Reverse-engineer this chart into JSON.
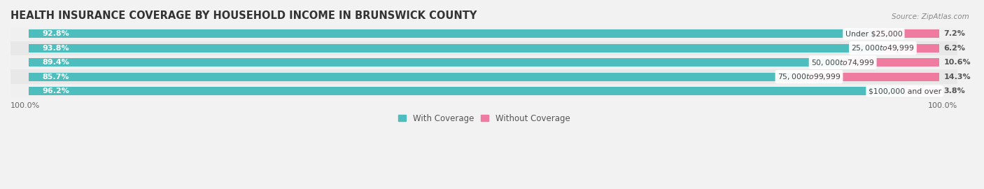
{
  "title": "HEALTH INSURANCE COVERAGE BY HOUSEHOLD INCOME IN BRUNSWICK COUNTY",
  "source": "Source: ZipAtlas.com",
  "categories": [
    "Under $25,000",
    "$25,000 to $49,999",
    "$50,000 to $74,999",
    "$75,000 to $99,999",
    "$100,000 and over"
  ],
  "with_coverage": [
    92.8,
    93.8,
    89.4,
    85.7,
    96.2
  ],
  "without_coverage": [
    7.2,
    6.2,
    10.6,
    14.3,
    3.8
  ],
  "color_with": "#4DBDBD",
  "color_without": "#F07BA0",
  "color_without_light": "#F5A8C0",
  "row_bg_colors": [
    "#F0F0F0",
    "#E8E8E8"
  ],
  "title_fontsize": 10.5,
  "label_fontsize": 8.0,
  "cat_fontsize": 7.8,
  "tick_fontsize": 8.0,
  "legend_fontsize": 8.5,
  "left_label": "100.0%",
  "right_label": "100.0%"
}
